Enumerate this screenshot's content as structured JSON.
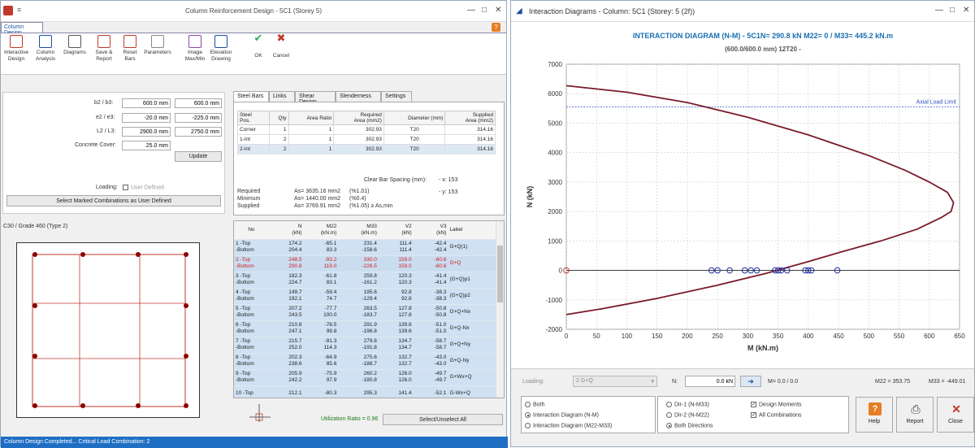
{
  "left": {
    "title": "Column Reinforcement Design -  5C1 (Storey 5)",
    "ribbon_tab": "Column Design",
    "ribbon": [
      {
        "label": "Interactive\nDesign",
        "icon": "interactive-design-icon"
      },
      {
        "label": "Column\nAnalysis",
        "icon": "column-analysis-icon"
      },
      {
        "label": "Diagrams",
        "icon": "diagrams-icon"
      },
      {
        "label": "Save &\nReport",
        "icon": "save-report-icon"
      },
      {
        "label": "Reset\nBars",
        "icon": "reset-bars-icon"
      },
      {
        "label": "Parameters",
        "icon": "parameters-icon"
      },
      {
        "label": "Image\nMax/Min",
        "icon": "image-maxmin-icon"
      },
      {
        "label": "Elevation\nDrawing",
        "icon": "elevation-drawing-icon"
      },
      {
        "label": "OK",
        "icon": "check-icon"
      },
      {
        "label": "Cancel",
        "icon": "cross-icon"
      }
    ],
    "fields": {
      "b_label": "b2 / b3:",
      "b2": "600.0 mm",
      "b3": "600.0 mm",
      "e_label": "e2 / e3:",
      "e2": "-20.0 mm",
      "e3": "-225.0 mm",
      "l_label": "L2 / L3:",
      "l2": "2900.0 mm",
      "l3": "2750.0 mm",
      "cover_label": "Concrete Cover:",
      "cover": "25.0 mm",
      "update": "Update",
      "loading_label": "Loading:",
      "user_defined": "User Defined",
      "select_marked": "Select Marked Combinations as User Defined"
    },
    "grade": "C30 / Grade 460 (Type 2)",
    "tabs": [
      "Steel Bars",
      "Links",
      "Shear Design",
      "Slenderness",
      "Settings"
    ],
    "steel_table": {
      "headers": [
        "Steel\nPos.",
        "Qty",
        "Area Ratio",
        "Required\nArea (mm2)",
        "Diameter (mm)",
        "Supplied\nArea (mm2)"
      ],
      "rows": [
        [
          "Corner",
          "1",
          "1",
          "302.93",
          "T20",
          "314.16"
        ],
        [
          "1-Int",
          "2",
          "1",
          "302.93",
          "T20",
          "314.16"
        ],
        [
          "2-Int",
          "2",
          "1",
          "302.93",
          "T20",
          "314.16"
        ]
      ]
    },
    "clear_bar_label": "Clear Bar Spacing (mm):",
    "clear_x": "- x: 153",
    "clear_y": "- y: 153",
    "summary": [
      [
        "Required",
        "As= 3635.16 mm2",
        "(%1.01)"
      ],
      [
        "Minimum",
        "As= 1440.00 mm2",
        "(%0.4)"
      ],
      [
        "Supplied",
        "As= 3769.91 mm2",
        "(%1.05) ≥ As,min"
      ]
    ],
    "combo_headers": [
      "No",
      "N\n(kN)",
      "M22\n(kN.m)",
      "M33\n(kN.m)",
      "V2\n(kN)",
      "V3\n(kN)",
      "Label"
    ],
    "combos": [
      {
        "no": "1 -Top\n-Bottom",
        "n": "174.2\n204.4",
        "m22": "-65.1\n83.3",
        "m33": "231.4\n-158.6",
        "v2": "111.4\n111.4",
        "v3": "-42.4\n-42.4",
        "label": "G+Q(1)",
        "red": false
      },
      {
        "no": "2 -Top\n-Bottom",
        "n": "248.5\n290.8",
        "m22": "-93.2\n119.0",
        "m33": "330.0\n-226.5",
        "v2": "159.0\n159.0",
        "v3": "-60.6\n-60.6",
        "label": "G+Q",
        "red": true
      },
      {
        "no": "3 -Top\n-Bottom",
        "n": "182.3\n224.7",
        "m22": "-61.8\n83.1",
        "m33": "259.8\n-161.2",
        "v2": "120.3\n120.3",
        "v3": "-41.4\n-41.4",
        "label": "(G+Q)p1",
        "red": false
      },
      {
        "no": "4 -Top\n-Bottom",
        "n": "149.7\n192.1",
        "m22": "-59.4\n74.7",
        "m33": "195.6\n-129.4",
        "v2": "92.8\n92.8",
        "v3": "-38.3\n-38.3",
        "label": "(G+Q)p2",
        "red": false
      },
      {
        "no": "5 -Top\n-Bottom",
        "n": "207.2\n243.5",
        "m22": "-77.7\n100.0",
        "m33": "263.5\n-183.7",
        "v2": "127.8\n127.8",
        "v3": "-50.8\n-50.8",
        "label": "G+Q+Nx",
        "red": false
      },
      {
        "no": "6 -Top\n-Bottom",
        "n": "210.8\n247.1",
        "m22": "-78.5\n99.8",
        "m33": "291.9\n-196.8",
        "v2": "139.6\n139.6",
        "v3": "-51.0\n-51.0",
        "label": "G+Q-Nx",
        "red": false
      },
      {
        "no": "7 -Top\n-Bottom",
        "n": "215.7\n252.0",
        "m22": "-91.3\n114.3",
        "m33": "279.8\n-191.8",
        "v2": "134.7\n134.7",
        "v3": "-58.7\n-58.7",
        "label": "G+Q+Ny",
        "red": false
      },
      {
        "no": "8 -Top\n-Bottom",
        "n": "202.3\n238.6",
        "m22": "-64.9\n85.6",
        "m33": "275.6\n-188.7",
        "v2": "132.7\n132.7",
        "v3": "-43.0\n-43.0",
        "label": "G+Q-Ny",
        "red": false
      },
      {
        "no": "9 -Top\n-Bottom",
        "n": "205.9\n242.2",
        "m22": "-75.9\n97.9",
        "m33": "260.2\n-180.8",
        "v2": "126.0\n126.0",
        "v3": "-49.7\n-49.7",
        "label": "G+Wx+Q",
        "red": false
      },
      {
        "no": "10 -Top",
        "n": "212.1",
        "m22": "-80.3",
        "m33": "295.3",
        "v2": "141.4",
        "v3": "-52.1",
        "label": "G-Wx+Q",
        "red": false
      }
    ],
    "utilization": "Utilization Ratio = 0.96",
    "select_unselect": "Select/Unselect All",
    "status": "Column Design Completed... Critical Load Combination: 2"
  },
  "right": {
    "title": "Interaction Diagrams - Column: 5C1 (Storey: 5 (2f))",
    "loading_label": "Loading:",
    "loading_value": "2 G+Q",
    "n_label": "N:",
    "n_value": "0.0 kN",
    "m_readout": "M= 0.0 / 0.0",
    "m22_readout": "M22 = 353.75",
    "m33_readout": "M33 = -449.01",
    "radios": [
      "Both",
      "Interaction Diagram (N-M)",
      "Interaction Diagram (M22-M33)"
    ],
    "dir_radios": [
      "Dir-1 (N-M33)",
      "Dir-2 (N-M22)",
      "Both Directions"
    ],
    "checks": [
      "Design Moments",
      "All Combinations"
    ],
    "buttons": {
      "help": "Help",
      "report": "Report",
      "close": "Close"
    }
  },
  "chart_data": {
    "type": "line",
    "title": "INTERACTION DIAGRAM (N-M) - 5C1N= 290.8 kN   M22= 0 / M33= 445.2 kN.m",
    "subtitle": "(600.0/600.0 mm) 12T20 -",
    "xlabel": "M (kN.m)",
    "ylabel": "N (kN)",
    "xlim": [
      0,
      650
    ],
    "ylim": [
      -2000,
      7000
    ],
    "xticks": [
      0,
      50,
      100,
      150,
      200,
      250,
      300,
      350,
      400,
      450,
      500,
      550,
      600,
      650
    ],
    "yticks": [
      -2000,
      -1000,
      0,
      1000,
      2000,
      3000,
      4000,
      5000,
      6000,
      7000
    ],
    "axial_limit_label": "Axial Load Limit",
    "axial_limit": 5550,
    "series": [
      {
        "values_x": [
          0,
          100,
          200,
          300,
          400,
          500,
          560,
          600,
          630,
          640,
          636,
          620,
          580,
          520,
          450,
          400,
          330,
          250,
          150,
          60,
          0
        ],
        "values_y": [
          6270,
          6050,
          5700,
          5200,
          4600,
          3900,
          3400,
          3000,
          2650,
          2300,
          2000,
          1800,
          1400,
          1000,
          600,
          300,
          -100,
          -500,
          -950,
          -1300,
          -1500
        ],
        "color": "#7a1a2a"
      }
    ],
    "points": {
      "x": [
        0,
        240,
        250,
        270,
        295,
        305,
        315,
        345,
        350,
        355,
        365,
        395,
        400,
        405,
        448
      ],
      "y": [
        0,
        0,
        0,
        0,
        0,
        0,
        0,
        0,
        0,
        0,
        0,
        0,
        0,
        0,
        0
      ]
    }
  }
}
